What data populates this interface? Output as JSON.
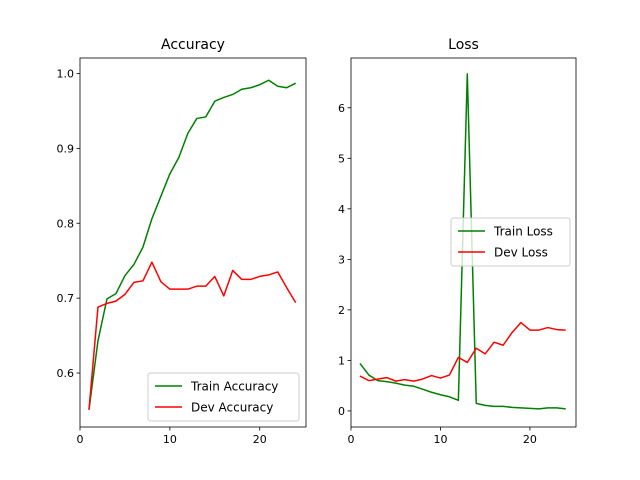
{
  "chart_data": [
    {
      "type": "line",
      "title": "Accuracy",
      "xlabel": "",
      "ylabel": "",
      "xlim": [
        0,
        25.15
      ],
      "ylim": [
        0.5279,
        1.0207
      ],
      "xticks": [
        0,
        10,
        20
      ],
      "yticks": [
        0.6,
        0.7,
        0.8,
        0.9,
        1.0
      ],
      "ytick_labels": [
        "0.6",
        "0.7",
        "0.8",
        "0.9",
        "1.0"
      ],
      "grid": false,
      "legend_position": "lower-right",
      "x": [
        1,
        2,
        3,
        4,
        5,
        6,
        7,
        8,
        9,
        10,
        11,
        12,
        13,
        14,
        15,
        16,
        17,
        18,
        19,
        20,
        21,
        22,
        23,
        24
      ],
      "series": [
        {
          "name": "Train Accuracy",
          "color": "#008000",
          "values": [
            0.551,
            0.643,
            0.699,
            0.706,
            0.73,
            0.745,
            0.768,
            0.806,
            0.836,
            0.866,
            0.888,
            0.92,
            0.94,
            0.942,
            0.963,
            0.968,
            0.972,
            0.979,
            0.981,
            0.985,
            0.991,
            0.983,
            0.981,
            0.987
          ]
        },
        {
          "name": "Dev Accuracy",
          "color": "#ff0000",
          "values": [
            0.551,
            0.688,
            0.693,
            0.696,
            0.705,
            0.721,
            0.723,
            0.748,
            0.722,
            0.712,
            0.712,
            0.712,
            0.716,
            0.716,
            0.729,
            0.703,
            0.737,
            0.725,
            0.725,
            0.729,
            0.731,
            0.735,
            0.714,
            0.694
          ]
        }
      ]
    },
    {
      "type": "line",
      "title": "Loss",
      "xlabel": "",
      "ylabel": "",
      "xlim": [
        0,
        25.15
      ],
      "ylim": [
        -0.318,
        6.985
      ],
      "xticks": [
        0,
        10,
        20
      ],
      "yticks": [
        0,
        1,
        2,
        3,
        4,
        5,
        6
      ],
      "ytick_labels": [
        "0",
        "1",
        "2",
        "3",
        "4",
        "5",
        "6"
      ],
      "grid": false,
      "legend_position": "center-right",
      "x": [
        1,
        2,
        3,
        4,
        5,
        6,
        7,
        8,
        9,
        10,
        11,
        12,
        13,
        14,
        15,
        16,
        17,
        18,
        19,
        20,
        21,
        22,
        23,
        24
      ],
      "series": [
        {
          "name": "Train Loss",
          "color": "#008000",
          "values": [
            0.94,
            0.71,
            0.6,
            0.58,
            0.55,
            0.51,
            0.49,
            0.43,
            0.37,
            0.32,
            0.28,
            0.21,
            6.67,
            0.15,
            0.11,
            0.09,
            0.09,
            0.07,
            0.06,
            0.05,
            0.04,
            0.06,
            0.06,
            0.04
          ]
        },
        {
          "name": "Dev Loss",
          "color": "#ff0000",
          "values": [
            0.69,
            0.6,
            0.63,
            0.66,
            0.59,
            0.62,
            0.59,
            0.63,
            0.7,
            0.65,
            0.71,
            1.06,
            0.96,
            1.24,
            1.13,
            1.36,
            1.3,
            1.55,
            1.75,
            1.6,
            1.6,
            1.65,
            1.61,
            1.6
          ]
        }
      ]
    }
  ]
}
